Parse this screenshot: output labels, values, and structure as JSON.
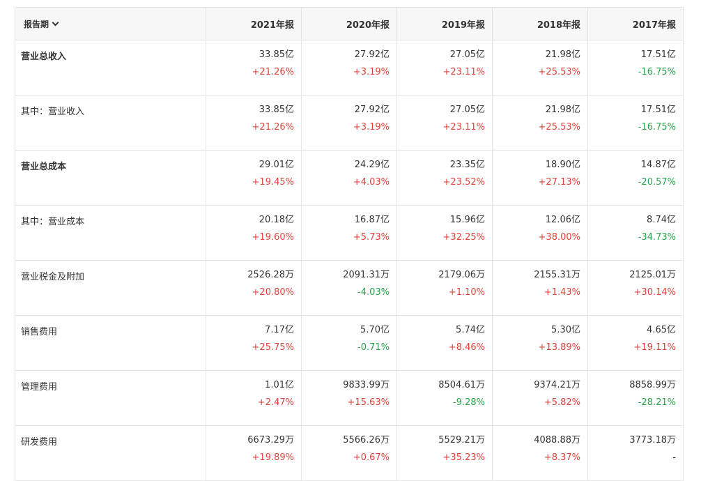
{
  "header": {
    "period_label": "报告期",
    "years": [
      "2021年报",
      "2020年报",
      "2019年报",
      "2018年报",
      "2017年报"
    ]
  },
  "rows": [
    {
      "label": "营业总收入",
      "bold": true,
      "cells": [
        {
          "value": "33.85亿",
          "change": "+21.26%",
          "dir": "up"
        },
        {
          "value": "27.92亿",
          "change": "+3.19%",
          "dir": "up"
        },
        {
          "value": "27.05亿",
          "change": "+23.11%",
          "dir": "up"
        },
        {
          "value": "21.98亿",
          "change": "+25.53%",
          "dir": "up"
        },
        {
          "value": "17.51亿",
          "change": "-16.75%",
          "dir": "down"
        }
      ]
    },
    {
      "label": "其中：营业收入",
      "bold": false,
      "cells": [
        {
          "value": "33.85亿",
          "change": "+21.26%",
          "dir": "up"
        },
        {
          "value": "27.92亿",
          "change": "+3.19%",
          "dir": "up"
        },
        {
          "value": "27.05亿",
          "change": "+23.11%",
          "dir": "up"
        },
        {
          "value": "21.98亿",
          "change": "+25.53%",
          "dir": "up"
        },
        {
          "value": "17.51亿",
          "change": "-16.75%",
          "dir": "down"
        }
      ]
    },
    {
      "label": "营业总成本",
      "bold": true,
      "cells": [
        {
          "value": "29.01亿",
          "change": "+19.45%",
          "dir": "up"
        },
        {
          "value": "24.29亿",
          "change": "+4.03%",
          "dir": "up"
        },
        {
          "value": "23.35亿",
          "change": "+23.52%",
          "dir": "up"
        },
        {
          "value": "18.90亿",
          "change": "+27.13%",
          "dir": "up"
        },
        {
          "value": "14.87亿",
          "change": "-20.57%",
          "dir": "down"
        }
      ]
    },
    {
      "label": "其中：营业成本",
      "bold": false,
      "cells": [
        {
          "value": "20.18亿",
          "change": "+19.60%",
          "dir": "up"
        },
        {
          "value": "16.87亿",
          "change": "+5.73%",
          "dir": "up"
        },
        {
          "value": "15.96亿",
          "change": "+32.25%",
          "dir": "up"
        },
        {
          "value": "12.06亿",
          "change": "+38.00%",
          "dir": "up"
        },
        {
          "value": "8.74亿",
          "change": "-34.73%",
          "dir": "down"
        }
      ]
    },
    {
      "label": "营业税金及附加",
      "bold": false,
      "cells": [
        {
          "value": "2526.28万",
          "change": "+20.80%",
          "dir": "up"
        },
        {
          "value": "2091.31万",
          "change": "-4.03%",
          "dir": "down"
        },
        {
          "value": "2179.06万",
          "change": "+1.10%",
          "dir": "up"
        },
        {
          "value": "2155.31万",
          "change": "+1.43%",
          "dir": "up"
        },
        {
          "value": "2125.01万",
          "change": "+30.14%",
          "dir": "up"
        }
      ]
    },
    {
      "label": "销售费用",
      "bold": false,
      "cells": [
        {
          "value": "7.17亿",
          "change": "+25.75%",
          "dir": "up"
        },
        {
          "value": "5.70亿",
          "change": "-0.71%",
          "dir": "down"
        },
        {
          "value": "5.74亿",
          "change": "+8.46%",
          "dir": "up"
        },
        {
          "value": "5.30亿",
          "change": "+13.89%",
          "dir": "up"
        },
        {
          "value": "4.65亿",
          "change": "+19.11%",
          "dir": "up"
        }
      ]
    },
    {
      "label": "管理费用",
      "bold": false,
      "cells": [
        {
          "value": "1.01亿",
          "change": "+2.47%",
          "dir": "up"
        },
        {
          "value": "9833.99万",
          "change": "+15.63%",
          "dir": "up"
        },
        {
          "value": "8504.61万",
          "change": "-9.28%",
          "dir": "down"
        },
        {
          "value": "9374.21万",
          "change": "+5.82%",
          "dir": "up"
        },
        {
          "value": "8858.99万",
          "change": "-28.21%",
          "dir": "down"
        }
      ]
    },
    {
      "label": "研发费用",
      "bold": false,
      "cells": [
        {
          "value": "6673.29万",
          "change": "+19.89%",
          "dir": "up"
        },
        {
          "value": "5566.26万",
          "change": "+0.67%",
          "dir": "up"
        },
        {
          "value": "5529.21万",
          "change": "+35.23%",
          "dir": "up"
        },
        {
          "value": "4088.88万",
          "change": "+8.37%",
          "dir": "up"
        },
        {
          "value": "3773.18万",
          "change": "-",
          "dir": "flat"
        }
      ]
    }
  ],
  "colors": {
    "up": "#e2413a",
    "down": "#27a34a",
    "border": "#e4e4e4",
    "header_bg": "#f7f7f7"
  }
}
